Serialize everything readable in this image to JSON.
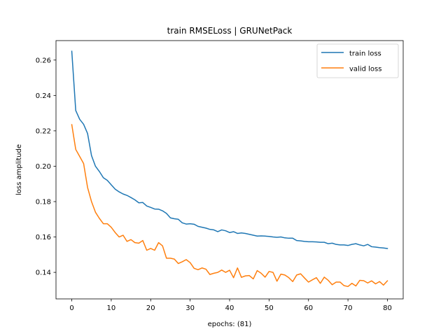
{
  "chart_data": {
    "type": "line",
    "title": "train RMSELoss | GRUNetPack",
    "xlabel": "epochs: (81)",
    "ylabel": "loss amplitude",
    "xlim": [
      -4,
      84
    ],
    "ylim": [
      0.125,
      0.271
    ],
    "xticks": [
      0,
      10,
      20,
      30,
      40,
      50,
      60,
      70,
      80
    ],
    "yticks": [
      0.14,
      0.16,
      0.18,
      0.2,
      0.22,
      0.24,
      0.26
    ],
    "ytick_labels": [
      "0.14",
      "0.16",
      "0.18",
      "0.20",
      "0.22",
      "0.24",
      "0.26"
    ],
    "grid": false,
    "legend_position": "top-right",
    "series": [
      {
        "name": "train loss",
        "color": "#1f77b4",
        "values": [
          0.265,
          0.2315,
          0.2265,
          0.2237,
          0.2185,
          0.206,
          0.2,
          0.197,
          0.1935,
          0.192,
          0.1895,
          0.187,
          0.1855,
          0.1843,
          0.1835,
          0.1823,
          0.181,
          0.1793,
          0.1795,
          0.1775,
          0.1767,
          0.1758,
          0.1757,
          0.1748,
          0.1733,
          0.1708,
          0.1703,
          0.17,
          0.168,
          0.1673,
          0.1675,
          0.1672,
          0.166,
          0.1655,
          0.165,
          0.1643,
          0.164,
          0.163,
          0.164,
          0.1635,
          0.1625,
          0.163,
          0.162,
          0.1623,
          0.162,
          0.1615,
          0.161,
          0.1605,
          0.1606,
          0.1605,
          0.1603,
          0.16,
          0.1598,
          0.16,
          0.1595,
          0.1593,
          0.1593,
          0.158,
          0.1578,
          0.1575,
          0.1573,
          0.1573,
          0.1572,
          0.157,
          0.157,
          0.1562,
          0.1565,
          0.1558,
          0.1555,
          0.1555,
          0.1552,
          0.1558,
          0.1562,
          0.1555,
          0.155,
          0.1558,
          0.1545,
          0.1543,
          0.154,
          0.1538,
          0.1535
        ]
      },
      {
        "name": "valid loss",
        "color": "#ff7f0e",
        "values": [
          0.2235,
          0.2095,
          0.2055,
          0.2015,
          0.188,
          0.18,
          0.174,
          0.1705,
          0.1675,
          0.1675,
          0.1655,
          0.1625,
          0.16,
          0.161,
          0.1575,
          0.1585,
          0.1568,
          0.1565,
          0.158,
          0.1525,
          0.1535,
          0.1525,
          0.1568,
          0.155,
          0.148,
          0.148,
          0.1475,
          0.145,
          0.146,
          0.1472,
          0.1455,
          0.1423,
          0.1415,
          0.1425,
          0.1418,
          0.1388,
          0.1395,
          0.14,
          0.1413,
          0.14,
          0.1412,
          0.137,
          0.1425,
          0.1372,
          0.138,
          0.1382,
          0.1363,
          0.141,
          0.1395,
          0.1373,
          0.1405,
          0.14,
          0.135,
          0.139,
          0.1385,
          0.137,
          0.1348,
          0.1385,
          0.1392,
          0.1368,
          0.1345,
          0.1358,
          0.137,
          0.1338,
          0.1373,
          0.1355,
          0.133,
          0.1345,
          0.1345,
          0.1325,
          0.132,
          0.1338,
          0.1323,
          0.1355,
          0.1353,
          0.134,
          0.1352,
          0.1335,
          0.1348,
          0.1328,
          0.1352
        ]
      }
    ]
  }
}
